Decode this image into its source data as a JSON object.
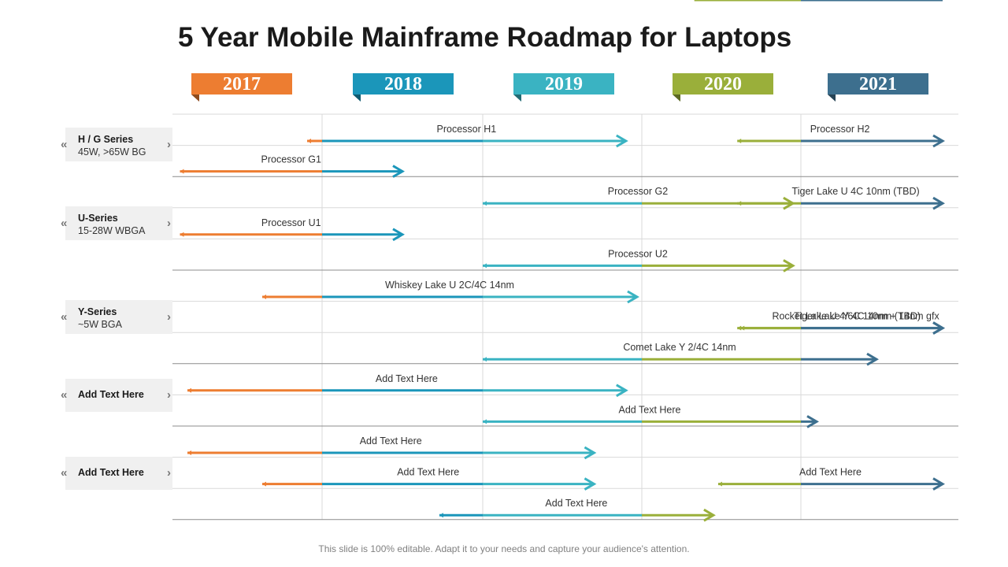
{
  "title": "5 Year Mobile Mainframe Roadmap for Laptops",
  "footer": "This slide is 100% editable. Adapt it to your needs and capture your audience's attention.",
  "colors": {
    "y2017": "#ED7D31",
    "y2018": "#1B96BA",
    "y2019": "#3AB3C2",
    "y2020": "#9AAF3A",
    "y2021": "#3D6F8E",
    "gridline": "#d9d9d9",
    "groupline": "#8c8c8c",
    "label_bg": "#f0f0f0"
  },
  "years": [
    "2017",
    "2018",
    "2019",
    "2020",
    "2021"
  ],
  "groups": [
    {
      "name": "H / G Series",
      "spec": "45W, >65W BG"
    },
    {
      "name": "U-Series",
      "spec": "15-28W WBGA"
    },
    {
      "name": "Y-Series",
      "spec": "~5W BGA"
    },
    {
      "name": "Add Text Here",
      "spec": ""
    },
    {
      "name": "Add Text Here",
      "spec": ""
    }
  ],
  "bars": [
    {
      "label": "Processor H1",
      "start": 2016.9,
      "end": 2018.9
    },
    {
      "label": "Processor H2",
      "start": 2019.6,
      "end": 2020.9
    },
    {
      "label": "Processor G1",
      "start": 2016.05,
      "end": 2017.5
    },
    {
      "label": "Processor G2",
      "start": 2018.0,
      "end": 2019.95
    },
    {
      "label": "Tiger Lake U 4C 10nm (TBD)",
      "start": 2019.6,
      "end": 2020.9
    },
    {
      "label": "Processor U1",
      "start": 2016.05,
      "end": 2017.5
    },
    {
      "label": "Processor U2",
      "start": 2018.0,
      "end": 2019.95
    },
    {
      "label": "Whiskey Lake U 2C/4C 14nm",
      "start": 2016.6,
      "end": 2018.97
    },
    {
      "label": "Rocket Lake U 4/6C 14nm + 14nm gfx",
      "start": 2019.6,
      "end": 2020.9
    },
    {
      "label": "Tiger Lake Y 4C 10nm (TBD)",
      "start": 2019.62,
      "end": 2020.9
    },
    {
      "label": "Comet Lake Y 2/4C 14nm",
      "start": 2018.0,
      "end": 2020.48
    },
    {
      "label": "Add Text Here",
      "start": 2016.1,
      "end": 2018.9
    },
    {
      "label": "Add Text Here",
      "start": 2018.0,
      "end": 2020.1
    },
    {
      "label": "Add Text Here",
      "start": 2016.1,
      "end": 2018.7
    },
    {
      "label": "Add Text Here",
      "start": 2019.48,
      "end": 2020.9
    },
    {
      "label": "Add Text Here",
      "start": 2016.6,
      "end": 2018.7
    },
    {
      "label": "Add Text Here",
      "start": 2017.73,
      "end": 2019.45
    },
    {
      "label": "Add Text Here",
      "start": 2019.33,
      "end": 2020.9
    }
  ]
}
